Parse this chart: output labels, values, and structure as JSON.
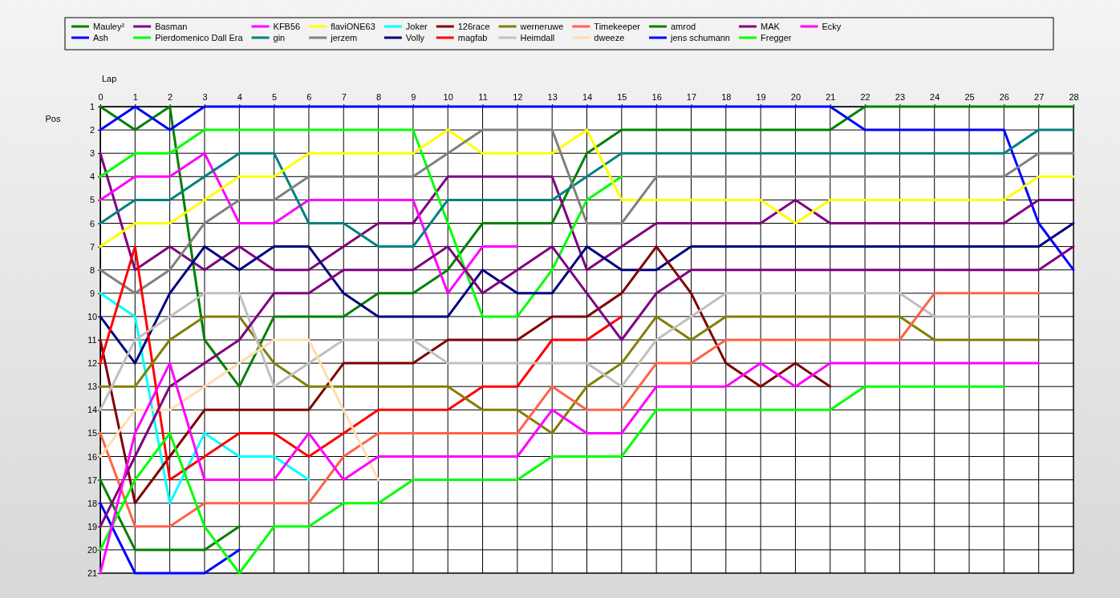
{
  "chart_data": {
    "type": "line",
    "xlabel": "Lap",
    "ylabel": "Pos",
    "x": [
      0,
      1,
      2,
      3,
      4,
      5,
      6,
      7,
      8,
      9,
      10,
      11,
      12,
      13,
      14,
      15,
      16,
      17,
      18,
      19,
      20,
      21,
      22,
      23,
      24,
      25,
      26,
      27,
      28
    ],
    "xlim": [
      0,
      28
    ],
    "xticks": [
      0,
      1,
      2,
      3,
      4,
      5,
      6,
      7,
      8,
      9,
      10,
      11,
      12,
      13,
      14,
      15,
      16,
      17,
      18,
      19,
      20,
      21,
      22,
      23,
      24,
      25,
      26,
      27,
      28
    ],
    "ylim": [
      21,
      1
    ],
    "yticks": [
      1,
      2,
      3,
      4,
      5,
      6,
      7,
      8,
      9,
      10,
      11,
      12,
      13,
      14,
      15,
      16,
      17,
      18,
      19,
      20,
      21
    ],
    "grid": true,
    "legend": "top",
    "line_style": "solid",
    "series": [
      {
        "name": "Mauley²",
        "color": "#008000",
        "values": [
          1,
          2,
          1,
          11,
          13,
          10,
          10,
          10,
          9,
          9,
          8,
          6,
          6,
          6,
          3,
          2,
          2,
          2,
          2,
          2,
          2,
          2,
          1,
          1,
          1,
          1,
          1,
          1,
          1
        ]
      },
      {
        "name": "Ash",
        "color": "#0000ff",
        "values": [
          2,
          1,
          2,
          1,
          1,
          1,
          1,
          1,
          1,
          1,
          1,
          1,
          1,
          1,
          1,
          1,
          1,
          1,
          1,
          1,
          1,
          1,
          2,
          2,
          2,
          2,
          2,
          6,
          8
        ]
      },
      {
        "name": "Basman",
        "color": "#800080",
        "values": [
          3,
          8,
          7,
          8,
          7,
          8,
          8,
          7,
          6,
          6,
          4,
          4,
          4,
          4,
          8,
          7,
          6,
          6,
          6,
          6,
          5,
          6,
          6,
          6,
          6,
          6,
          6,
          5,
          5
        ]
      },
      {
        "name": "Pierdomenico Dall Era",
        "color": "#00ff00",
        "values": [
          4,
          3,
          3,
          2,
          2,
          2,
          2,
          2,
          2,
          2,
          6,
          10,
          10,
          8,
          5,
          4,
          null,
          null,
          null,
          null,
          null,
          null,
          null,
          null,
          null,
          null,
          null,
          null,
          null
        ]
      },
      {
        "name": "KFB56",
        "color": "#ff00ff",
        "values": [
          5,
          4,
          4,
          3,
          6,
          6,
          5,
          5,
          5,
          5,
          9,
          7,
          7,
          null,
          null,
          null,
          null,
          null,
          null,
          null,
          null,
          null,
          null,
          null,
          null,
          null,
          null,
          null,
          null
        ]
      },
      {
        "name": "gin",
        "color": "#008080",
        "values": [
          6,
          5,
          5,
          4,
          3,
          3,
          6,
          6,
          7,
          7,
          5,
          5,
          5,
          5,
          4,
          3,
          3,
          3,
          3,
          3,
          3,
          3,
          3,
          3,
          3,
          3,
          3,
          2,
          2
        ]
      },
      {
        "name": "flaviONE63",
        "color": "#ffff00",
        "values": [
          7,
          6,
          6,
          5,
          4,
          4,
          3,
          3,
          3,
          3,
          2,
          3,
          3,
          3,
          2,
          5,
          5,
          5,
          5,
          5,
          6,
          5,
          5,
          5,
          5,
          5,
          5,
          4,
          4
        ]
      },
      {
        "name": "jerzem",
        "color": "#808080",
        "values": [
          8,
          9,
          8,
          6,
          5,
          5,
          4,
          4,
          4,
          4,
          3,
          2,
          2,
          2,
          6,
          6,
          4,
          4,
          4,
          4,
          4,
          4,
          4,
          4,
          4,
          4,
          4,
          3,
          3
        ]
      },
      {
        "name": "Joker",
        "color": "#00ffff",
        "values": [
          9,
          10,
          18,
          15,
          16,
          16,
          17,
          null,
          null,
          null,
          null,
          null,
          null,
          null,
          null,
          null,
          null,
          null,
          null,
          null,
          null,
          null,
          null,
          null,
          null,
          null,
          null,
          null,
          null
        ]
      },
      {
        "name": "Volly",
        "color": "#000080",
        "values": [
          10,
          12,
          9,
          7,
          8,
          7,
          7,
          9,
          10,
          10,
          10,
          8,
          9,
          9,
          7,
          8,
          8,
          7,
          7,
          7,
          7,
          7,
          7,
          7,
          7,
          7,
          7,
          7,
          6
        ]
      },
      {
        "name": "126race",
        "color": "#800000",
        "values": [
          11,
          18,
          16,
          14,
          14,
          14,
          14,
          12,
          12,
          12,
          11,
          11,
          11,
          10,
          10,
          9,
          7,
          9,
          12,
          13,
          12,
          13,
          null,
          null,
          null,
          null,
          null,
          null,
          null
        ]
      },
      {
        "name": "magfab",
        "color": "#ff0000",
        "values": [
          12,
          7,
          17,
          16,
          15,
          15,
          16,
          15,
          14,
          14,
          14,
          13,
          13,
          11,
          11,
          10,
          null,
          null,
          null,
          null,
          null,
          null,
          null,
          null,
          null,
          null,
          null,
          null,
          null
        ]
      },
      {
        "name": "werneruwe",
        "color": "#808000",
        "values": [
          13,
          13,
          11,
          10,
          10,
          12,
          13,
          13,
          13,
          13,
          13,
          14,
          14,
          15,
          13,
          12,
          10,
          11,
          10,
          10,
          10,
          10,
          10,
          10,
          11,
          11,
          11,
          11,
          null
        ]
      },
      {
        "name": "Heimdall",
        "color": "#c0c0c0",
        "values": [
          14,
          11,
          10,
          9,
          9,
          13,
          12,
          11,
          11,
          11,
          12,
          12,
          12,
          12,
          12,
          13,
          11,
          10,
          9,
          9,
          9,
          9,
          9,
          9,
          10,
          10,
          10,
          10,
          null
        ]
      },
      {
        "name": "Timekeeper",
        "color": "#ff6347",
        "values": [
          15,
          19,
          19,
          18,
          18,
          18,
          18,
          16,
          15,
          15,
          15,
          15,
          15,
          13,
          14,
          14,
          12,
          12,
          11,
          11,
          11,
          11,
          11,
          11,
          9,
          9,
          9,
          9,
          null
        ]
      },
      {
        "name": "dweeze",
        "color": "#ffdead",
        "values": [
          16,
          14,
          14,
          13,
          12,
          11,
          11,
          14,
          17,
          null,
          null,
          null,
          null,
          null,
          null,
          null,
          null,
          null,
          null,
          null,
          null,
          null,
          null,
          null,
          null,
          null,
          null,
          null,
          null
        ]
      },
      {
        "name": "amrod",
        "color": "#008000",
        "values": [
          17,
          20,
          20,
          20,
          19,
          null,
          null,
          null,
          null,
          null,
          null,
          null,
          null,
          null,
          null,
          null,
          null,
          null,
          null,
          null,
          null,
          null,
          null,
          null,
          null,
          null,
          null,
          null,
          null
        ]
      },
      {
        "name": "jens  schumann",
        "color": "#0000ff",
        "values": [
          18,
          21,
          21,
          21,
          20,
          null,
          null,
          null,
          null,
          null,
          null,
          null,
          null,
          null,
          null,
          null,
          null,
          null,
          null,
          null,
          null,
          null,
          null,
          null,
          null,
          null,
          null,
          null,
          null
        ]
      },
      {
        "name": "MAK",
        "color": "#800080",
        "values": [
          19,
          16,
          13,
          12,
          11,
          9,
          9,
          8,
          8,
          8,
          7,
          9,
          8,
          7,
          9,
          11,
          9,
          8,
          8,
          8,
          8,
          8,
          8,
          8,
          8,
          8,
          8,
          8,
          7
        ]
      },
      {
        "name": "Fregger",
        "color": "#00ff00",
        "values": [
          20,
          17,
          15,
          19,
          21,
          19,
          19,
          18,
          18,
          17,
          17,
          17,
          17,
          16,
          16,
          16,
          14,
          14,
          14,
          14,
          14,
          14,
          13,
          13,
          13,
          13,
          13,
          null,
          null
        ]
      },
      {
        "name": "Ecky",
        "color": "#ff00ff",
        "values": [
          21,
          15,
          12,
          17,
          17,
          17,
          15,
          17,
          16,
          16,
          16,
          16,
          16,
          14,
          15,
          15,
          13,
          13,
          13,
          12,
          13,
          12,
          12,
          12,
          12,
          12,
          12,
          12,
          null
        ]
      }
    ]
  }
}
